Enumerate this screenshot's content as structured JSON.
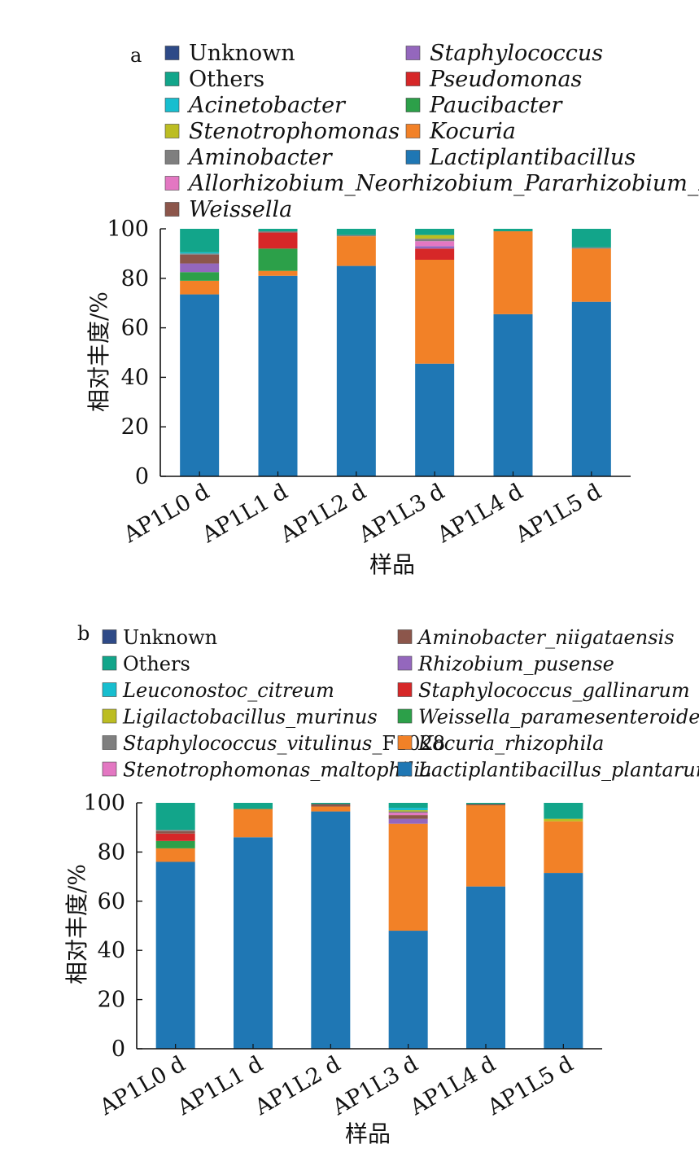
{
  "chart_data": [
    {
      "panel_label": "a",
      "type": "bar",
      "stacked": true,
      "xlabel": "样品",
      "ylabel": "相对丰度/%",
      "ylim": [
        0,
        100
      ],
      "yticks": [
        "0",
        "20",
        "40",
        "60",
        "80",
        "100"
      ],
      "categories": [
        "AP1L0 d",
        "AP1L1 d",
        "AP1L2 d",
        "AP1L3 d",
        "AP1L4 d",
        "AP1L5 d"
      ],
      "legend_columns": [
        [
          "Unknown",
          "Others",
          "Acinetobacter",
          "Stenotrophomonas",
          "Aminobacter",
          "Allorhizobium_Neorhizobium_Pararhizobium_Rhizobium",
          "Weissella"
        ],
        [
          "Staphylococcus",
          "Pseudomonas",
          "Paucibacter",
          "Kocuria",
          "Lactiplantibacillus"
        ]
      ],
      "series": [
        {
          "name": "Lactiplantibacillus",
          "color": "#1f77b4",
          "italic": true,
          "values": [
            73.5,
            81,
            85,
            45.5,
            65.5,
            70.5
          ]
        },
        {
          "name": "Kocuria",
          "color": "#f28127",
          "italic": true,
          "values": [
            5.5,
            2,
            12,
            42,
            33.5,
            21.5
          ]
        },
        {
          "name": "Paucibacter",
          "color": "#2ca049",
          "italic": true,
          "values": [
            3.5,
            9,
            0,
            0,
            0,
            0
          ]
        },
        {
          "name": "Pseudomonas",
          "color": "#d62728",
          "italic": true,
          "values": [
            0,
            6.5,
            0,
            4.5,
            0,
            0
          ]
        },
        {
          "name": "Staphylococcus",
          "color": "#9467bd",
          "italic": true,
          "values": [
            3.5,
            0,
            0,
            1,
            0,
            0
          ]
        },
        {
          "name": "Weissella",
          "color": "#8c564b",
          "italic": true,
          "values": [
            3.5,
            0,
            0,
            0,
            0,
            0
          ]
        },
        {
          "name": "Allorhizobium_Neorhizobium_Pararhizobium_Rhizobium",
          "color": "#e377c2",
          "italic": true,
          "values": [
            0,
            0,
            0,
            2,
            0,
            0
          ]
        },
        {
          "name": "Aminobacter",
          "color": "#7f7f7f",
          "italic": true,
          "values": [
            0.5,
            0.5,
            0.5,
            1,
            0,
            0.5
          ]
        },
        {
          "name": "Stenotrophomonas",
          "color": "#bcbd22",
          "italic": true,
          "values": [
            0,
            0,
            0,
            1.5,
            0,
            0
          ]
        },
        {
          "name": "Acinetobacter",
          "color": "#17becf",
          "italic": true,
          "values": [
            0.5,
            0,
            0,
            0,
            0,
            0
          ]
        },
        {
          "name": "Others",
          "color": "#12a58a",
          "italic": false,
          "values": [
            9.5,
            1,
            2.5,
            2.5,
            1,
            7.5
          ]
        },
        {
          "name": "Unknown",
          "color": "#2e4a87",
          "italic": false,
          "values": [
            0,
            0,
            0,
            0,
            0,
            0
          ]
        }
      ]
    },
    {
      "panel_label": "b",
      "type": "bar",
      "stacked": true,
      "xlabel": "样品",
      "ylabel": "相对丰度/%",
      "ylim": [
        0,
        100
      ],
      "yticks": [
        "0",
        "20",
        "40",
        "60",
        "80",
        "100"
      ],
      "categories": [
        "AP1L0 d",
        "AP1L1 d",
        "AP1L2 d",
        "AP1L3 d",
        "AP1L4 d",
        "AP1L5 d"
      ],
      "legend_columns": [
        [
          "Unknown",
          "Others",
          "Leuconostoc_citreum",
          "Ligilactobacillus_murinus",
          "Staphylococcus_vitulinus_F1028",
          "Stenotrophomonas_maltophilia"
        ],
        [
          "Aminobacter_niigataensis",
          "Rhizobium_pusense",
          "Staphylococcus_gallinarum",
          "Weissella_paramesenteroides",
          "Kocuria_rhizophila",
          "Lactiplantibacillus_plantarum"
        ]
      ],
      "series": [
        {
          "name": "Lactiplantibacillus_plantarum",
          "color": "#1f77b4",
          "italic": true,
          "values": [
            76,
            86,
            96.5,
            48,
            66,
            71.5
          ]
        },
        {
          "name": "Kocuria_rhizophila",
          "color": "#f28127",
          "italic": true,
          "values": [
            5.5,
            11.5,
            2,
            43.5,
            33,
            21
          ]
        },
        {
          "name": "Weissella_paramesenteroides",
          "color": "#2ca049",
          "italic": true,
          "values": [
            3,
            0,
            0,
            0,
            0,
            0
          ]
        },
        {
          "name": "Staphylococcus_gallinarum",
          "color": "#d62728",
          "italic": true,
          "values": [
            3,
            0,
            0,
            0,
            0,
            0
          ]
        },
        {
          "name": "Rhizobium_pusense",
          "color": "#9467bd",
          "italic": true,
          "values": [
            0,
            0,
            0,
            2,
            0,
            0
          ]
        },
        {
          "name": "Aminobacter_niigataensis",
          "color": "#8c564b",
          "italic": true,
          "values": [
            1,
            0,
            1,
            1.5,
            0.5,
            0
          ]
        },
        {
          "name": "Stenotrophomonas_maltophilia",
          "color": "#e377c2",
          "italic": true,
          "values": [
            0,
            0,
            0,
            1,
            0,
            0
          ]
        },
        {
          "name": "Staphylococcus_vitulinus_F1028",
          "color": "#7f7f7f",
          "italic": true,
          "values": [
            0.5,
            0,
            0,
            0.5,
            0,
            0
          ]
        },
        {
          "name": "Ligilactobacillus_murinus",
          "color": "#bcbd22",
          "italic": true,
          "values": [
            0,
            0,
            0,
            0.5,
            0,
            1
          ]
        },
        {
          "name": "Leuconostoc_citreum",
          "color": "#17becf",
          "italic": true,
          "values": [
            0,
            0,
            0,
            1,
            0,
            0
          ]
        },
        {
          "name": "Others",
          "color": "#12a58a",
          "italic": false,
          "values": [
            11,
            2.5,
            0.5,
            2,
            0.5,
            6.5
          ]
        },
        {
          "name": "Unknown",
          "color": "#2e4a87",
          "italic": false,
          "values": [
            0,
            0,
            0,
            0,
            0,
            0
          ]
        }
      ]
    }
  ]
}
